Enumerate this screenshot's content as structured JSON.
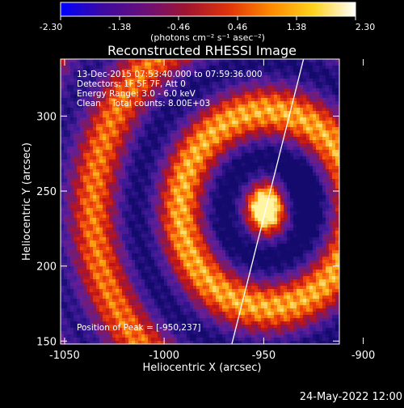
{
  "colorbar": {
    "ticks": [
      "-2.30",
      "-1.38",
      "-0.46",
      "0.46",
      "1.38",
      "2.30"
    ],
    "units": "(photons cm⁻² s⁻¹ asec⁻²)",
    "colors": [
      "#0000ff",
      "#3d0aa0",
      "#6a0f7a",
      "#a0152f",
      "#e0340a",
      "#ff8a00",
      "#ffd21e",
      "#ffffff"
    ]
  },
  "chart_data": {
    "type": "heatmap",
    "title": "Reconstructed RHESSI Image",
    "xlabel": "Heliocentric X (arcsec)",
    "ylabel": "Heliocentric Y (arcsec)",
    "xlim": [
      -1052,
      -912
    ],
    "ylim": [
      148,
      338
    ],
    "x_ticks": [
      "-1050",
      "-1000",
      "-950",
      "-900"
    ],
    "y_ticks": [
      "150",
      "200",
      "250",
      "300"
    ],
    "annotations": [
      "13-Dec-2015 07:53:40.000 to 07:59:36.000",
      "Detectors: 1F 5F 7F, Att 0",
      "Energy Range: 3.0 - 6.0 keV",
      "Clean    Total counts: 8.00E+03"
    ],
    "peak_label": "Position of Peak = [-950,237]",
    "peak": [
      -950,
      237
    ],
    "limb_line": [
      [
        -966,
        148
      ],
      [
        -930,
        338
      ]
    ]
  },
  "footer": {
    "date": "24-May-2022 12:00"
  }
}
